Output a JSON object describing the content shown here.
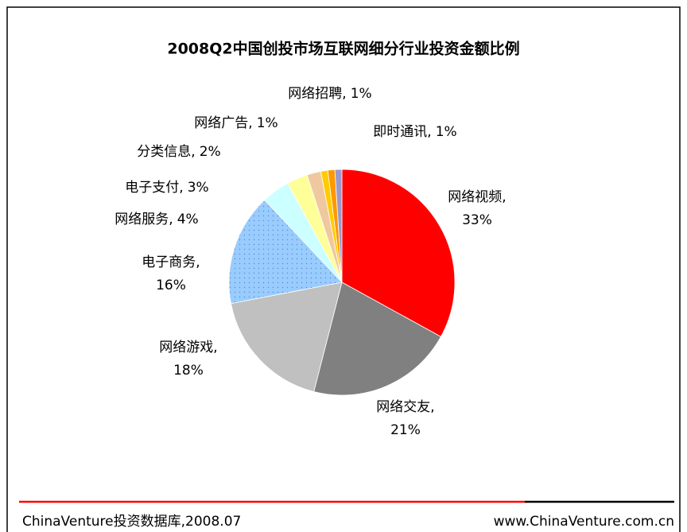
{
  "chart_data": {
    "type": "pie",
    "title": "2008Q2中国创投市场互联网细分行业投资金额比例",
    "categories": [
      "网络视频,",
      "网络交友,",
      "网络游戏,",
      "电子商务,",
      "网络服务,",
      "电子支付,",
      "分类信息,",
      "网络广告,",
      "网络招聘,",
      "即时通讯,"
    ],
    "values": [
      33,
      21,
      18,
      16,
      4,
      3,
      2,
      1,
      1,
      1
    ],
    "value_labels": [
      "33%",
      "21%",
      "18%",
      "16%",
      "4%",
      "3%",
      "2%",
      "1%",
      "1%",
      "1%"
    ],
    "colors": [
      "#ff0000",
      "#808080",
      "#c0c0c0",
      "#99ccff",
      "#ccffff",
      "#ffff99",
      "#f0c8a0",
      "#ffcc00",
      "#ff9900",
      "#9999cc"
    ],
    "source": "ChinaVenture投资数据库,2008.07",
    "website": "www.ChinaVenture.com.cn"
  }
}
